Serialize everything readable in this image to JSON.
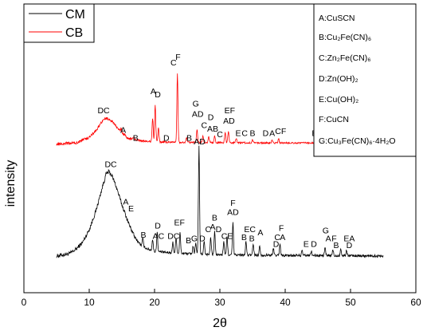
{
  "chart_data": {
    "type": "line",
    "title": "",
    "xlabel": "2θ",
    "ylabel": "intensity",
    "xlim": [
      0,
      60
    ],
    "x_ticks": [
      0,
      10,
      20,
      30,
      40,
      50,
      60
    ],
    "y_ticks_shown": false,
    "grid": false,
    "legend_placement": "top-left",
    "phase_legend_placement": "top-right",
    "series": [
      {
        "name": "CM",
        "color": "#000000",
        "baseline": 0.0,
        "noise": 0.022,
        "points": [
          [
            5,
            0.02
          ],
          [
            7,
            0.04
          ],
          [
            8,
            0.08
          ],
          [
            9,
            0.14
          ],
          [
            10,
            0.25
          ],
          [
            11,
            0.41
          ],
          [
            12,
            0.62
          ],
          [
            12.6,
            0.74
          ],
          [
            13,
            0.76
          ],
          [
            13.5,
            0.72
          ],
          [
            14,
            0.65
          ],
          [
            15,
            0.47
          ],
          [
            16,
            0.31
          ],
          [
            17,
            0.18
          ],
          [
            18,
            0.11
          ],
          [
            19,
            0.08
          ],
          [
            20,
            0.06
          ],
          [
            22,
            0.05
          ],
          [
            25,
            0.04
          ],
          [
            30,
            0.03
          ],
          [
            40,
            0.025
          ],
          [
            55,
            0.02
          ]
        ],
        "peaks": [
          [
            18.2,
            0.07
          ],
          [
            19.7,
            0.1
          ],
          [
            20.4,
            0.17
          ],
          [
            22.8,
            0.09
          ],
          [
            23.3,
            0.14
          ],
          [
            23.9,
            0.18
          ],
          [
            25.9,
            0.07
          ],
          [
            26.3,
            0.09
          ],
          [
            26.8,
            0.95
          ],
          [
            27.6,
            0.12
          ],
          [
            28.6,
            0.15
          ],
          [
            29.2,
            0.2
          ],
          [
            30.6,
            0.12
          ],
          [
            31.1,
            0.16
          ],
          [
            32.0,
            0.28
          ],
          [
            34.0,
            0.12
          ],
          [
            35.1,
            0.1
          ],
          [
            36.1,
            0.08
          ],
          [
            38.2,
            0.06
          ],
          [
            39.2,
            0.1
          ],
          [
            42.6,
            0.04
          ],
          [
            44.0,
            0.04
          ],
          [
            46.1,
            0.07
          ],
          [
            47.3,
            0.05
          ],
          [
            48.5,
            0.06
          ],
          [
            49.4,
            0.05
          ]
        ]
      },
      {
        "name": "CB",
        "color": "#ff0000",
        "baseline": 1.0,
        "noise": 0.015,
        "points": [
          [
            5,
            0.0
          ],
          [
            8,
            0.01
          ],
          [
            10,
            0.06
          ],
          [
            11,
            0.12
          ],
          [
            12,
            0.2
          ],
          [
            12.6,
            0.23
          ],
          [
            13.5,
            0.2
          ],
          [
            14.5,
            0.13
          ],
          [
            16,
            0.05
          ],
          [
            18,
            0.03
          ],
          [
            20,
            0.02
          ],
          [
            25,
            0.015
          ],
          [
            40,
            0.01
          ],
          [
            55,
            0.01
          ]
        ],
        "peaks": [
          [
            14.9,
            0.03
          ],
          [
            16.8,
            0.02
          ],
          [
            19.7,
            0.2
          ],
          [
            20.1,
            0.33
          ],
          [
            20.6,
            0.12
          ],
          [
            23.5,
            0.6
          ],
          [
            24.9,
            0.04
          ],
          [
            26.5,
            0.12
          ],
          [
            27.4,
            0.06
          ],
          [
            28.3,
            0.05
          ],
          [
            29.2,
            0.06
          ],
          [
            30.8,
            0.09
          ],
          [
            31.3,
            0.1
          ],
          [
            32.5,
            0.04
          ],
          [
            35.0,
            0.03
          ],
          [
            38.0,
            0.03
          ],
          [
            39.0,
            0.04
          ],
          [
            45.6,
            0.03
          ],
          [
            47.0,
            0.04
          ],
          [
            48.4,
            0.03
          ]
        ]
      }
    ],
    "legend_entries": [
      "CM",
      "CB"
    ],
    "phase_legend": [
      "A:CuSCN",
      "B:Cu₂Fe(CN)₆",
      "C:Zn₂Fe(CN)₆",
      "D:Zn(OH)₂",
      "E:Cu(OH)₂",
      "F:CuCN",
      "G:Cu₃Fe(CN)₆·4H₂O"
    ],
    "cb_labels": [
      {
        "text": "DC",
        "x": 12.2,
        "y": 1.27
      },
      {
        "text": "A",
        "x": 15.2,
        "y": 1.1
      },
      {
        "text": "B",
        "x": 17.1,
        "y": 1.03
      },
      {
        "text": "A",
        "x": 19.8,
        "y": 1.44
      },
      {
        "text": "D",
        "x": 20.5,
        "y": 1.41
      },
      {
        "text": "D",
        "x": 21.8,
        "y": 1.03
      },
      {
        "text": "C",
        "x": 22.9,
        "y": 1.69
      },
      {
        "text": "F",
        "x": 23.6,
        "y": 1.74
      },
      {
        "text": "B",
        "x": 25.3,
        "y": 1.03
      },
      {
        "text": "G",
        "x": 26.3,
        "y": 1.33
      },
      {
        "text": "AD",
        "x": 26.6,
        "y": 1.24
      },
      {
        "text": "C",
        "x": 27.6,
        "y": 1.14
      },
      {
        "text": "D",
        "x": 28.6,
        "y": 1.21
      },
      {
        "text": "AB",
        "x": 28.9,
        "y": 1.11
      },
      {
        "text": "C",
        "x": 30.0,
        "y": 1.06
      },
      {
        "text": "EF",
        "x": 31.5,
        "y": 1.27
      },
      {
        "text": "AD",
        "x": 31.4,
        "y": 1.18
      },
      {
        "text": "E",
        "x": 32.8,
        "y": 1.07
      },
      {
        "text": "C",
        "x": 33.8,
        "y": 1.07
      },
      {
        "text": "B",
        "x": 35.0,
        "y": 1.07
      },
      {
        "text": "D",
        "x": 37.0,
        "y": 1.07
      },
      {
        "text": "A",
        "x": 38.0,
        "y": 1.07
      },
      {
        "text": "CF",
        "x": 39.3,
        "y": 1.09
      },
      {
        "text": "E",
        "x": 44.5,
        "y": 1.07
      },
      {
        "text": "G",
        "x": 45.3,
        "y": 1.1
      },
      {
        "text": "F",
        "x": 46.9,
        "y": 1.14
      },
      {
        "text": "A",
        "x": 45.9,
        "y": 1.05
      },
      {
        "text": "B",
        "x": 47.0,
        "y": 1.05
      },
      {
        "text": "A",
        "x": 48.2,
        "y": 1.09
      },
      {
        "text": "EA",
        "x": 50.2,
        "y": 1.07
      }
    ],
    "cm_labels": [
      {
        "text": "DC",
        "x": 13.3,
        "y": 0.8
      },
      {
        "text": "A",
        "x": 15.6,
        "y": 0.47
      },
      {
        "text": "E",
        "x": 16.4,
        "y": 0.41
      },
      {
        "text": "B",
        "x": 18.3,
        "y": 0.18
      },
      {
        "text": "D",
        "x": 20.5,
        "y": 0.26
      },
      {
        "text": "AC",
        "x": 20.6,
        "y": 0.17
      },
      {
        "text": "DC",
        "x": 22.9,
        "y": 0.17
      },
      {
        "text": "EF",
        "x": 23.8,
        "y": 0.29
      },
      {
        "text": "B",
        "x": 25.2,
        "y": 0.13
      },
      {
        "text": "G",
        "x": 26.1,
        "y": 0.15
      },
      {
        "text": "D",
        "x": 27.3,
        "y": 0.15
      },
      {
        "text": "AD",
        "x": 26.9,
        "y": 1.0
      },
      {
        "text": "C",
        "x": 28.2,
        "y": 0.23
      },
      {
        "text": "A",
        "x": 28.9,
        "y": 0.25
      },
      {
        "text": "B",
        "x": 29.2,
        "y": 0.33
      },
      {
        "text": "D",
        "x": 29.8,
        "y": 0.23
      },
      {
        "text": "F",
        "x": 32.0,
        "y": 0.46
      },
      {
        "text": "AD",
        "x": 32.0,
        "y": 0.38
      },
      {
        "text": "CE",
        "x": 31.1,
        "y": 0.17
      },
      {
        "text": "B",
        "x": 33.7,
        "y": 0.16
      },
      {
        "text": "EC",
        "x": 34.6,
        "y": 0.23
      },
      {
        "text": "B",
        "x": 34.9,
        "y": 0.15
      },
      {
        "text": "A",
        "x": 36.2,
        "y": 0.2
      },
      {
        "text": "F",
        "x": 39.4,
        "y": 0.24
      },
      {
        "text": "C",
        "x": 38.8,
        "y": 0.16
      },
      {
        "text": "A",
        "x": 39.6,
        "y": 0.16
      },
      {
        "text": "D",
        "x": 38.6,
        "y": 0.1
      },
      {
        "text": "E",
        "x": 43.2,
        "y": 0.1
      },
      {
        "text": "D",
        "x": 44.4,
        "y": 0.1
      },
      {
        "text": "G",
        "x": 46.2,
        "y": 0.22
      },
      {
        "text": "A",
        "x": 46.6,
        "y": 0.15
      },
      {
        "text": "F",
        "x": 47.5,
        "y": 0.15
      },
      {
        "text": "B",
        "x": 47.8,
        "y": 0.09
      },
      {
        "text": "EA",
        "x": 49.8,
        "y": 0.15
      },
      {
        "text": "D",
        "x": 49.8,
        "y": 0.09
      }
    ]
  }
}
